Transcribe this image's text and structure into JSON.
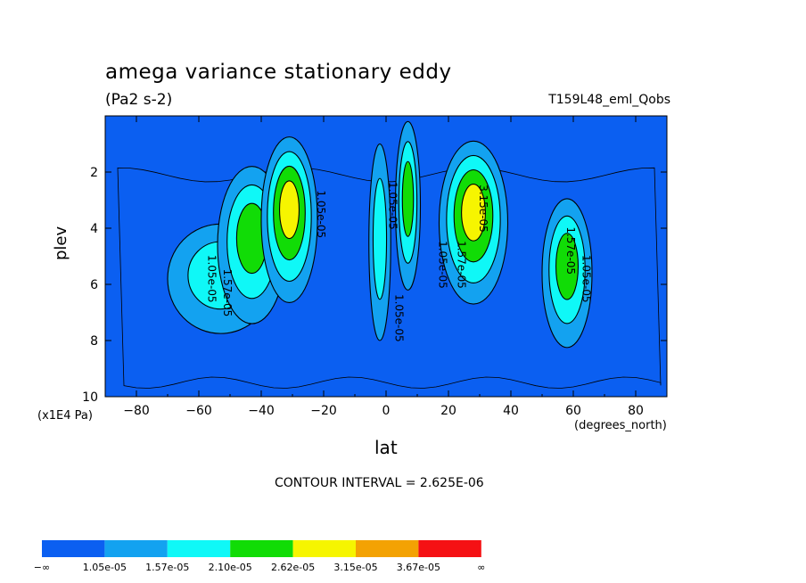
{
  "title": "amega variance stationary eddy",
  "units": "(Pa2 s-2)",
  "run_label": "T159L48_eml_Qobs",
  "contour_interval": "CONTOUR INTERVAL = 2.625E-06",
  "chart_data": {
    "type": "contour",
    "xlabel": "lat",
    "x_unit": "(degrees_north)",
    "ylabel": "plev",
    "y_unit": "(x1E4 Pa)",
    "xlim": [
      -90,
      90
    ],
    "ylim": [
      10,
      0
    ],
    "x_ticks": [
      -80,
      -60,
      -40,
      -20,
      0,
      20,
      40,
      60,
      80
    ],
    "x_tick_labels": [
      "−80",
      "−60",
      "−40",
      "−20",
      "0",
      "20",
      "40",
      "60",
      "80"
    ],
    "y_ticks": [
      2,
      4,
      6,
      8,
      10
    ],
    "y_tick_labels": [
      "2",
      "4",
      "6",
      "8",
      "10"
    ],
    "contour_labels": [
      {
        "text": "1.05e-05",
        "lat": -57,
        "plev": 5.8,
        "rotate": 90
      },
      {
        "text": "1.57e-05",
        "lat": -52,
        "plev": 6.3,
        "rotate": 90
      },
      {
        "text": "1.05e-05",
        "lat": -22,
        "plev": 3.5,
        "rotate": 90
      },
      {
        "text": "1.05e-05",
        "lat": 1,
        "plev": 3.2,
        "rotate": 90
      },
      {
        "text": "1.05e-05",
        "lat": 3,
        "plev": 7.2,
        "rotate": 90
      },
      {
        "text": "1.05e-05",
        "lat": 17,
        "plev": 5.3,
        "rotate": 90
      },
      {
        "text": "1.57e-05",
        "lat": 23,
        "plev": 5.3,
        "rotate": 90
      },
      {
        "text": "3.15e-05",
        "lat": 30,
        "plev": 3.3,
        "rotate": 90
      },
      {
        "text": "1.57e-05",
        "lat": 58,
        "plev": 4.8,
        "rotate": 90
      },
      {
        "text": "1.05e-05",
        "lat": 63,
        "plev": 5.8,
        "rotate": 90
      }
    ],
    "colorbar": {
      "colors": [
        "#0b5ff1",
        "#13a2f0",
        "#0ff8f7",
        "#11dc06",
        "#f6f500",
        "#f3a203",
        "#f51114"
      ],
      "labels": [
        "−∞",
        "1.05e-05",
        "1.57e-05",
        "2.10e-05",
        "2.62e-05",
        "3.15e-05",
        "3.67e-05",
        "∞"
      ]
    },
    "field_levels": [
      0,
      1,
      2,
      3,
      4,
      5,
      6
    ],
    "features": [
      {
        "lat": -53,
        "plev": 5.8,
        "peak": 2
      },
      {
        "lat": -43,
        "plev": 4.6,
        "peak": 3
      },
      {
        "lat": -31,
        "plev": 3.7,
        "peak": 4
      },
      {
        "lat": -2,
        "plev": 4.5,
        "peak": 2
      },
      {
        "lat": 7,
        "plev": 3.2,
        "peak": 3
      },
      {
        "lat": 28,
        "plev": 3.8,
        "peak": 4
      },
      {
        "lat": 58,
        "plev": 5.6,
        "peak": 3
      }
    ]
  }
}
